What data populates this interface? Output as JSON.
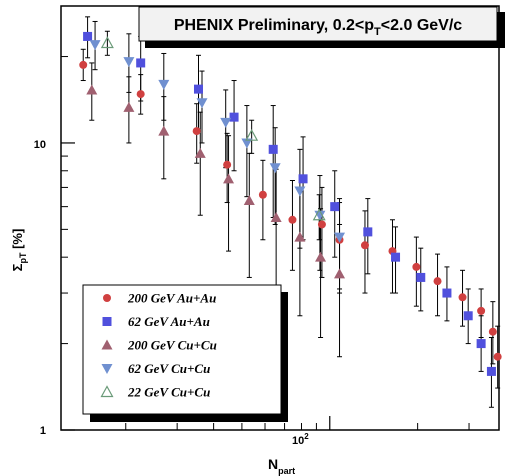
{
  "chart_data": {
    "type": "scatter",
    "title": "PHENIX Preliminary, 0.2<p",
    "title_sub": "T",
    "title_suffix": "<2.0 GeV/c",
    "xlabel_main": "N",
    "xlabel_sub": "part",
    "ylabel_main": "Σ",
    "ylabel_sub": "pT",
    "ylabel_suffix": " [%]",
    "xscale": "log",
    "yscale": "log",
    "xlim": [
      12,
      380
    ],
    "ylim": [
      1,
      30
    ],
    "x_tick_labels": [
      {
        "value": 100,
        "base": "10",
        "exp": "2"
      }
    ],
    "y_tick_labels": [
      {
        "value": 1,
        "label": "1"
      },
      {
        "value": 10,
        "label": "10"
      }
    ],
    "grid": false,
    "legend_position": "bottom-left",
    "series": [
      {
        "name": "200 GeV Au+Au",
        "marker": "circle",
        "color": "#d04040",
        "points": [
          {
            "x": 14.3,
            "y": 18.7,
            "ylo": 16.5,
            "yhi": 21.2
          },
          {
            "x": 22.5,
            "y": 14.8,
            "ylo": 12.6,
            "yhi": 17.3
          },
          {
            "x": 35,
            "y": 11.0,
            "ylo": 8.5,
            "yhi": 13.7
          },
          {
            "x": 44.5,
            "y": 8.4,
            "ylo": 6.2,
            "yhi": 10.8
          },
          {
            "x": 59,
            "y": 6.6,
            "ylo": 4.6,
            "yhi": 8.7
          },
          {
            "x": 74.5,
            "y": 5.4,
            "ylo": 3.6,
            "yhi": 7.4
          },
          {
            "x": 94,
            "y": 5.2,
            "ylo": 3.4,
            "yhi": 7.0
          },
          {
            "x": 108,
            "y": 4.6,
            "ylo": 3.1,
            "yhi": 6.2
          },
          {
            "x": 132,
            "y": 4.4,
            "ylo": 3.0,
            "yhi": 5.8
          },
          {
            "x": 164,
            "y": 4.2,
            "ylo": 3.0,
            "yhi": 5.4
          },
          {
            "x": 198,
            "y": 3.7,
            "ylo": 2.7,
            "yhi": 4.7
          },
          {
            "x": 234,
            "y": 3.3,
            "ylo": 2.5,
            "yhi": 4.1
          },
          {
            "x": 285,
            "y": 2.9,
            "ylo": 2.3,
            "yhi": 3.6
          },
          {
            "x": 330,
            "y": 2.6,
            "ylo": 2.1,
            "yhi": 3.1
          },
          {
            "x": 362,
            "y": 2.2,
            "ylo": 1.7,
            "yhi": 2.8
          },
          {
            "x": 376,
            "y": 1.8,
            "ylo": 1.4,
            "yhi": 2.3
          }
        ]
      },
      {
        "name": "62 GeV Au+Au",
        "marker": "square",
        "color": "#5050dd",
        "points": [
          {
            "x": 14.8,
            "y": 23.5,
            "ylo": 19.8,
            "yhi": 27.5
          },
          {
            "x": 22.5,
            "y": 19.0,
            "ylo": 14.0,
            "yhi": 23.5
          },
          {
            "x": 35.5,
            "y": 15.4,
            "ylo": 11.0,
            "yhi": 20.2
          },
          {
            "x": 47,
            "y": 12.3,
            "ylo": 8.0,
            "yhi": 16.5
          },
          {
            "x": 64,
            "y": 9.5,
            "ylo": 5.5,
            "yhi": 13.5
          },
          {
            "x": 81,
            "y": 7.5,
            "ylo": 4.6,
            "yhi": 10.5
          },
          {
            "x": 104,
            "y": 6.0,
            "ylo": 4.0,
            "yhi": 8.0
          },
          {
            "x": 135,
            "y": 4.9,
            "ylo": 3.5,
            "yhi": 6.4
          },
          {
            "x": 168,
            "y": 4.0,
            "ylo": 3.0,
            "yhi": 5.1
          },
          {
            "x": 205,
            "y": 3.4,
            "ylo": 2.6,
            "yhi": 4.3
          },
          {
            "x": 252,
            "y": 3.0,
            "ylo": 2.4,
            "yhi": 3.7
          },
          {
            "x": 298,
            "y": 2.5,
            "ylo": 2.0,
            "yhi": 3.1
          },
          {
            "x": 330,
            "y": 2.0,
            "ylo": 1.6,
            "yhi": 2.5
          },
          {
            "x": 358,
            "y": 1.6,
            "ylo": 1.2,
            "yhi": 2.1
          }
        ]
      },
      {
        "name": "200 GeV Cu+Cu",
        "marker": "triangle-up",
        "color": "#a06070",
        "points": [
          {
            "x": 15.3,
            "y": 15.3,
            "ylo": 12.0,
            "yhi": 19.0
          },
          {
            "x": 20.5,
            "y": 13.3,
            "ylo": 10.0,
            "yhi": 17.0
          },
          {
            "x": 27,
            "y": 11.0,
            "ylo": 7.5,
            "yhi": 14.5
          },
          {
            "x": 36,
            "y": 9.2,
            "ylo": 5.6,
            "yhi": 12.8
          },
          {
            "x": 45,
            "y": 7.5,
            "ylo": 4.2,
            "yhi": 10.6
          },
          {
            "x": 53,
            "y": 6.3,
            "ylo": 3.4,
            "yhi": 9.2
          },
          {
            "x": 65.5,
            "y": 5.5,
            "ylo": 3.0,
            "yhi": 8.1
          },
          {
            "x": 79,
            "y": 4.7,
            "ylo": 2.5,
            "yhi": 6.9
          },
          {
            "x": 93,
            "y": 4.0,
            "ylo": 2.1,
            "yhi": 5.9
          },
          {
            "x": 108,
            "y": 3.5,
            "ylo": 1.8,
            "yhi": 5.2
          }
        ]
      },
      {
        "name": "62 GeV Cu+Cu",
        "marker": "triangle-down",
        "color": "#7090d0",
        "points": [
          {
            "x": 15.7,
            "y": 22.0,
            "ylo": 18.0,
            "yhi": 26.5
          },
          {
            "x": 20.5,
            "y": 19.2,
            "ylo": 15.0,
            "yhi": 24.0
          },
          {
            "x": 27,
            "y": 16.0,
            "ylo": 12.0,
            "yhi": 20.5
          },
          {
            "x": 36.5,
            "y": 13.8,
            "ylo": 10.0,
            "yhi": 17.8
          },
          {
            "x": 44,
            "y": 11.8,
            "ylo": 8.2,
            "yhi": 15.3
          },
          {
            "x": 52,
            "y": 10.0,
            "ylo": 6.5,
            "yhi": 13.5
          },
          {
            "x": 65,
            "y": 8.2,
            "ylo": 5.2,
            "yhi": 11.3
          },
          {
            "x": 79,
            "y": 6.8,
            "ylo": 4.3,
            "yhi": 9.5
          },
          {
            "x": 92.5,
            "y": 5.6,
            "ylo": 3.6,
            "yhi": 7.7
          },
          {
            "x": 108,
            "y": 4.7,
            "ylo": 3.0,
            "yhi": 6.4
          }
        ]
      },
      {
        "name": "22 GeV Cu+Cu",
        "marker": "triangle-up-open",
        "color": "#6a9a78",
        "points": [
          {
            "x": 17.3,
            "y": 22.3,
            "ylo": 20.2,
            "yhi": 24.5
          },
          {
            "x": 54,
            "y": 10.6,
            "ylo": 9.2,
            "yhi": 12.0
          },
          {
            "x": 92,
            "y": 5.6,
            "ylo": 4.6,
            "yhi": 6.6
          }
        ]
      }
    ]
  }
}
